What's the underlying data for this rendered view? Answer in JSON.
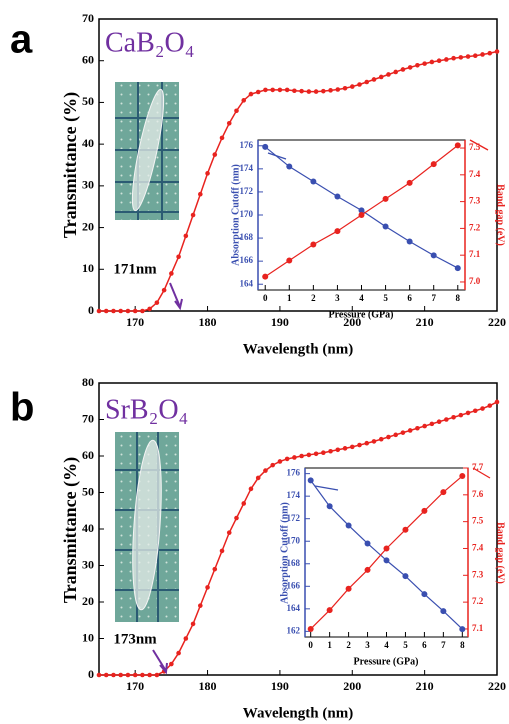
{
  "chart_data": [
    {
      "type": "line",
      "panel_label": "a",
      "title": "CaB₂O₄",
      "annotation": "171nm",
      "x_label": "Wavelength (nm)",
      "y_label": "Transmittance (%)",
      "x": [
        165,
        166,
        167,
        168,
        169,
        170,
        171,
        172,
        173,
        174,
        175,
        176,
        177,
        178,
        179,
        180,
        181,
        182,
        183,
        184,
        185,
        186,
        187,
        188,
        189,
        190,
        191,
        192,
        193,
        194,
        195,
        196,
        197,
        198,
        199,
        200,
        201,
        202,
        203,
        204,
        205,
        206,
        207,
        208,
        209,
        210,
        211,
        212,
        213,
        214,
        215,
        216,
        217,
        218,
        219,
        220
      ],
      "series": [
        {
          "color": "#e8231f",
          "values": [
            0,
            0,
            0,
            0,
            0,
            0,
            0,
            0.5,
            2,
            5,
            9,
            13,
            18,
            23,
            28,
            33,
            37.5,
            41.5,
            45,
            48,
            50.5,
            52,
            52.5,
            53,
            53,
            53,
            53,
            52.8,
            52.7,
            52.6,
            52.6,
            52.7,
            52.9,
            53.1,
            53.4,
            53.8,
            54.3,
            54.9,
            55.5,
            56.1,
            56.7,
            57.3,
            57.9,
            58.4,
            58.9,
            59.3,
            59.7,
            60,
            60.3,
            60.6,
            60.8,
            61,
            61.2,
            61.5,
            61.8,
            62.2
          ]
        }
      ],
      "xlim": [
        165,
        220
      ],
      "xticks": [
        170,
        180,
        190,
        200,
        210,
        220
      ],
      "ylim": [
        0,
        70
      ],
      "yticks": [
        0,
        10,
        20,
        30,
        40,
        50,
        60,
        70
      ]
    },
    {
      "type": "line",
      "x_label": "Pressure (GPa)",
      "y_label": "Absorption Cutoff (nm)",
      "y2_label": "Band gap (eV)",
      "x": [
        0,
        1,
        2,
        3,
        4,
        5,
        6,
        7,
        8
      ],
      "series": [
        {
          "color": "#3a4fb0",
          "values": [
            175.9,
            174.2,
            172.9,
            171.6,
            170.4,
            169.0,
            167.7,
            166.5,
            165.4
          ]
        },
        {
          "color": "#e8231f",
          "axis": "y2",
          "values": [
            7.02,
            7.08,
            7.14,
            7.19,
            7.25,
            7.31,
            7.37,
            7.44,
            7.51
          ]
        }
      ],
      "xlim": [
        -0.3,
        8.3
      ],
      "xticks": [
        0,
        1,
        2,
        3,
        4,
        5,
        6,
        7,
        8
      ],
      "ylim": [
        163.5,
        176.5
      ],
      "yticks": [
        164,
        166,
        168,
        170,
        172,
        174,
        176
      ],
      "y2lim": [
        6.97,
        7.53
      ],
      "y2ticks": [
        {
          "value": 7,
          "label": "7.0"
        },
        7.1,
        7.2,
        7.3,
        7.4,
        7.5
      ]
    },
    {
      "type": "line",
      "panel_label": "b",
      "title": "SrB₂O₄",
      "annotation": "173nm",
      "x_label": "Wavelength (nm)",
      "y_label": "Transmittance (%)",
      "x": [
        165,
        166,
        167,
        168,
        169,
        170,
        171,
        172,
        173,
        174,
        175,
        176,
        177,
        178,
        179,
        180,
        181,
        182,
        183,
        184,
        185,
        186,
        187,
        188,
        189,
        190,
        191,
        192,
        193,
        194,
        195,
        196,
        197,
        198,
        199,
        200,
        201,
        202,
        203,
        204,
        205,
        206,
        207,
        208,
        209,
        210,
        211,
        212,
        213,
        214,
        215,
        216,
        217,
        218,
        219,
        220
      ],
      "series": [
        {
          "color": "#e8231f",
          "values": [
            0,
            0,
            0,
            0,
            0,
            0,
            0,
            0,
            0,
            1,
            3,
            6,
            10,
            14,
            19,
            24,
            29,
            34,
            39,
            43,
            47,
            51,
            54,
            56,
            57.5,
            58.5,
            59.2,
            59.6,
            60,
            60.3,
            60.6,
            60.9,
            61.3,
            61.7,
            62.1,
            62.5,
            63,
            63.5,
            64,
            64.6,
            65.2,
            65.8,
            66.4,
            67,
            67.6,
            68.2,
            68.8,
            69.4,
            70,
            70.6,
            71.2,
            71.8,
            72.4,
            73,
            73.8,
            74.8
          ]
        }
      ],
      "xlim": [
        165,
        220
      ],
      "xticks": [
        170,
        180,
        190,
        200,
        210,
        220
      ],
      "ylim": [
        0,
        80
      ],
      "yticks": [
        0,
        10,
        20,
        30,
        40,
        50,
        60,
        70,
        80
      ]
    },
    {
      "type": "line",
      "x_label": "Pressure (GPa)",
      "y_label": "Absorption Cutoff (nm)",
      "y2_label": "Band gap (eV)",
      "x": [
        0,
        1,
        2,
        3,
        4,
        5,
        6,
        7,
        8
      ],
      "series": [
        {
          "color": "#3a4fb0",
          "values": [
            175.4,
            173.1,
            171.4,
            169.8,
            168.3,
            166.9,
            165.3,
            163.8,
            162.2
          ]
        },
        {
          "color": "#e8231f",
          "axis": "y2",
          "values": [
            7.1,
            7.17,
            7.25,
            7.32,
            7.4,
            7.47,
            7.54,
            7.61,
            7.67
          ]
        }
      ],
      "xlim": [
        -0.3,
        8.3
      ],
      "xticks": [
        0,
        1,
        2,
        3,
        4,
        5,
        6,
        7,
        8
      ],
      "ylim": [
        161.5,
        176.5
      ],
      "yticks": [
        162,
        164,
        166,
        168,
        170,
        172,
        174,
        176
      ],
      "y2lim": [
        7.07,
        7.7
      ],
      "y2ticks": [
        7.1,
        7.2,
        7.3,
        7.4,
        7.5,
        7.6,
        7.7
      ]
    }
  ]
}
